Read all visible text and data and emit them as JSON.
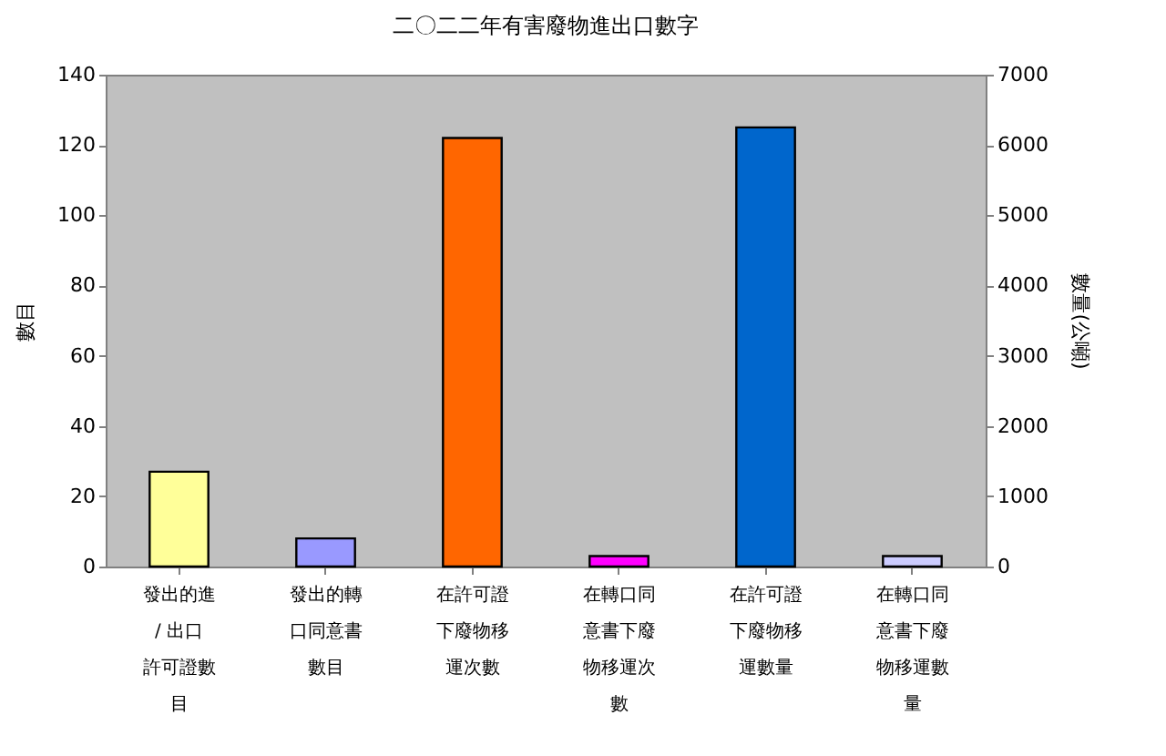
{
  "chart_data": {
    "type": "bar",
    "title": "二〇二二年有害廢物進出口數字",
    "categories": [
      "發出的進 / 出口許可證數目",
      "發出的轉口同意書數目",
      "在許可證下廢物移運次數",
      "在轉口同意書下廢物移運次數",
      "在許可證下廢物移運數量",
      "在轉口同意書下廢物移運數量"
    ],
    "ylabel": "數目",
    "y2label": "數量(公噸)",
    "series": [
      {
        "values": [
          27,
          8,
          122,
          3,
          null,
          null
        ],
        "colors": [
          "#ffff99",
          "#9999ff",
          "#ff6600",
          "#ff00ff",
          null,
          null
        ]
      },
      {
        "axis": "y2",
        "values": [
          null,
          null,
          null,
          null,
          6250,
          150
        ],
        "colors": [
          null,
          null,
          null,
          null,
          "#0066cc",
          "#ccccff"
        ]
      }
    ],
    "ylim": [
      0,
      140
    ],
    "yticks": [
      0,
      20,
      40,
      60,
      80,
      100,
      120,
      140
    ],
    "y2lim": [
      0,
      7000
    ],
    "y2ticks": [
      0,
      1000,
      2000,
      3000,
      4000,
      5000,
      6000,
      7000
    ],
    "grid": false
  }
}
